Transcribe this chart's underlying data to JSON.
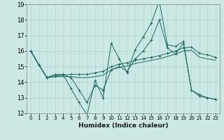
{
  "xlabel": "Humidex (Indice chaleur)",
  "bg_color": "#cce8e4",
  "grid_color": "#aad4cc",
  "line_color": "#1a6a60",
  "xlim": [
    -0.5,
    23.5
  ],
  "ylim": [
    12,
    19
  ],
  "xticks": [
    0,
    1,
    2,
    3,
    4,
    5,
    6,
    7,
    8,
    9,
    10,
    11,
    12,
    13,
    14,
    15,
    16,
    17,
    18,
    19,
    20,
    21,
    22,
    23
  ],
  "yticks": [
    12,
    13,
    14,
    15,
    16,
    17,
    18,
    19
  ],
  "series": [
    {
      "y": [
        16.0,
        15.1,
        14.3,
        14.5,
        14.5,
        13.6,
        12.7,
        11.9,
        14.1,
        13.0,
        16.5,
        15.5,
        14.6,
        16.1,
        16.9,
        17.8,
        19.2,
        16.4,
        16.3,
        16.6,
        13.5,
        13.1,
        13.0,
        12.9
      ],
      "marker": true
    },
    {
      "y": [
        16.0,
        15.1,
        14.3,
        14.4,
        14.45,
        14.5,
        14.5,
        14.5,
        14.6,
        14.7,
        15.0,
        15.15,
        15.25,
        15.4,
        15.5,
        15.6,
        15.7,
        15.85,
        16.0,
        16.2,
        16.25,
        15.85,
        15.75,
        15.6
      ],
      "marker": true
    },
    {
      "y": [
        16.0,
        15.1,
        14.3,
        14.35,
        14.35,
        14.35,
        14.3,
        14.3,
        14.35,
        14.45,
        14.8,
        14.95,
        15.05,
        15.2,
        15.3,
        15.4,
        15.5,
        15.65,
        15.8,
        16.0,
        16.05,
        15.6,
        15.5,
        15.4
      ],
      "marker": false
    },
    {
      "y": [
        16.0,
        15.1,
        14.3,
        14.4,
        14.5,
        14.3,
        13.5,
        12.7,
        13.8,
        13.5,
        14.8,
        15.0,
        14.7,
        15.5,
        16.0,
        16.7,
        18.0,
        16.2,
        15.8,
        16.5,
        13.5,
        13.2,
        13.0,
        12.9
      ],
      "marker": true
    }
  ]
}
